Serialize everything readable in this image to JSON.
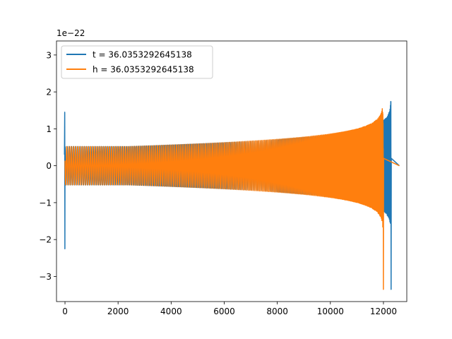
{
  "chart_data": {
    "type": "line",
    "title": "",
    "xlabel": "",
    "ylabel": "",
    "offset_label": "1e−22",
    "xlim": [
      -320,
      12880
    ],
    "ylim": [
      -3.68,
      3.38
    ],
    "xticks": [
      0,
      2000,
      4000,
      6000,
      8000,
      10000,
      12000
    ],
    "xtick_labels": [
      "0",
      "2000",
      "4000",
      "6000",
      "8000",
      "10000",
      "12000"
    ],
    "yticks": [
      -3,
      -2,
      -1,
      0,
      1,
      2,
      3
    ],
    "ytick_labels": [
      "−3",
      "−2",
      "−1",
      "0",
      "1",
      "2",
      "3"
    ],
    "grid": false,
    "legend_position": "upper left",
    "series": [
      {
        "name": "t = 36.0353292645138",
        "color": "#1f77b4",
        "waveform": {
          "start_x": 0,
          "merger_x": 12280,
          "end_x": 12300,
          "early_amplitude": 0.52,
          "peak_amplitude": 3.1,
          "startup_spike_max": 1.45,
          "startup_spike_min": -2.25,
          "final_min": -3.35,
          "cycles": 235
        }
      },
      {
        "name": "h = 36.0353292645138",
        "color": "#ff7f0e",
        "waveform": {
          "start_x": 0,
          "merger_x": 11990,
          "end_x": 12300,
          "early_amplitude": 0.52,
          "peak_amplitude": 3.1,
          "final_min": -3.35,
          "cycles": 230
        }
      }
    ]
  }
}
